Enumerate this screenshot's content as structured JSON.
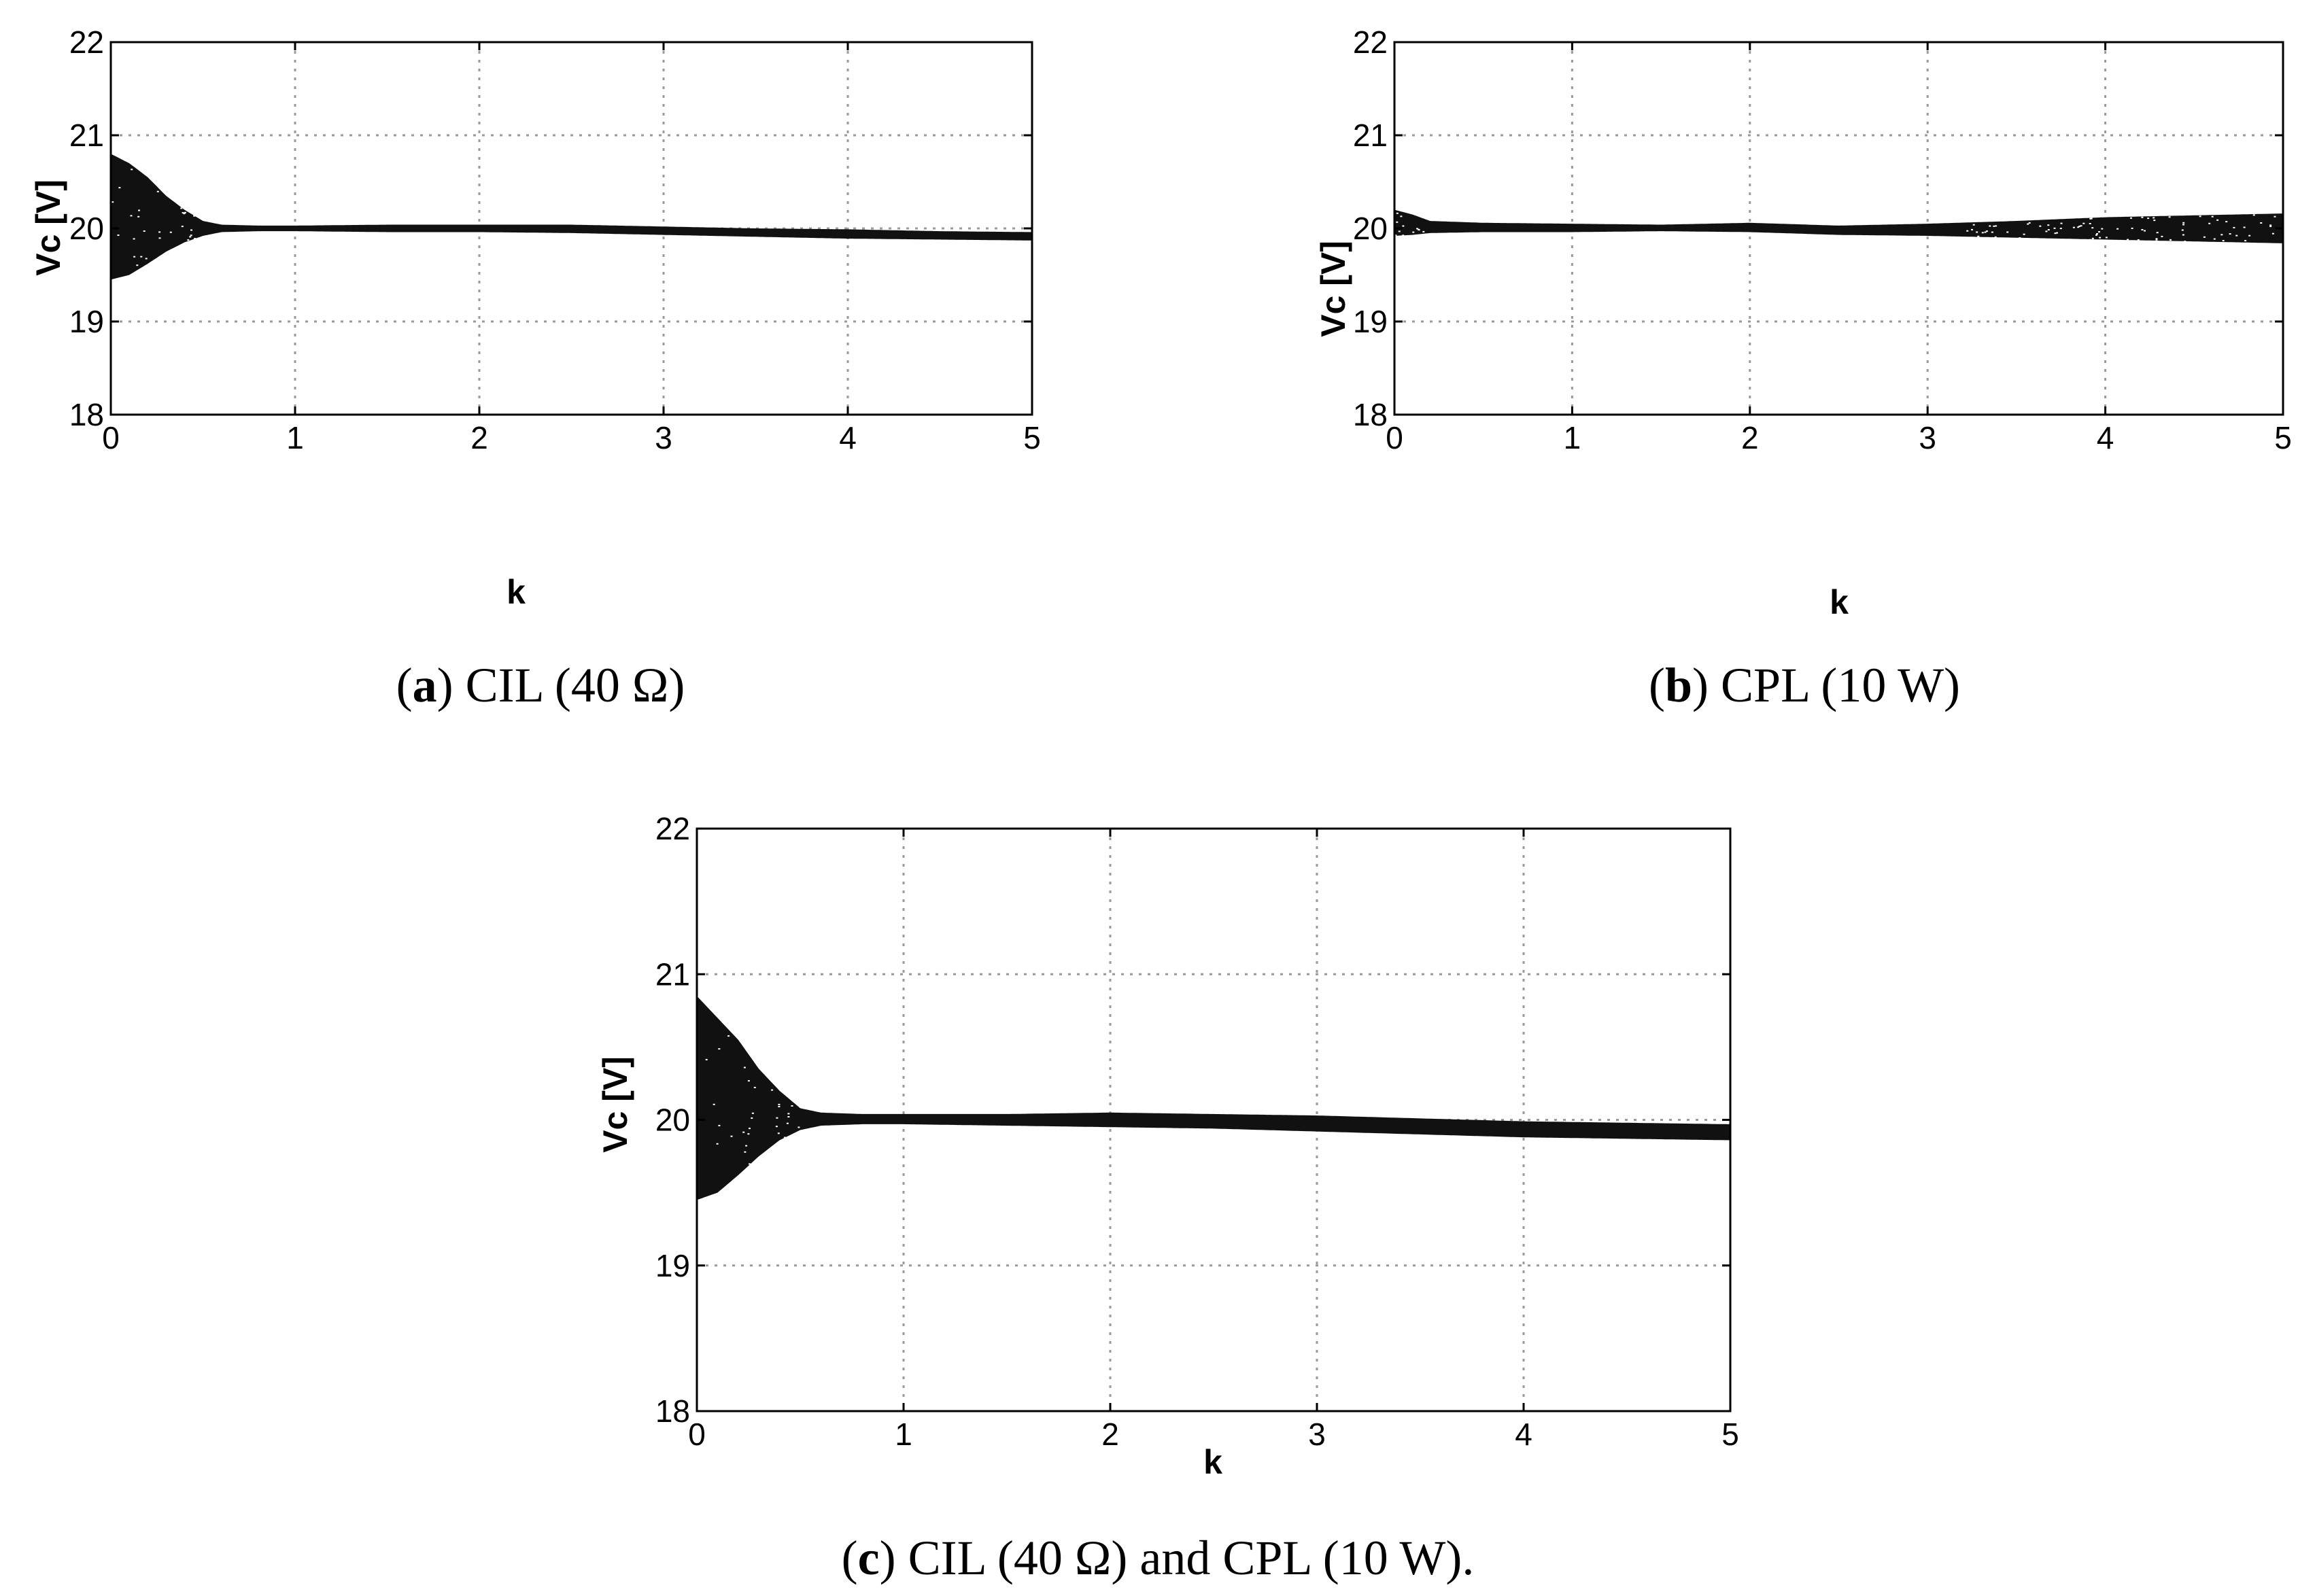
{
  "chart_data": [
    {
      "type": "scatter",
      "id": "a",
      "caption_letter": "a",
      "caption_text": " CIL (40 Ω)",
      "xlabel": "k",
      "ylabel": "Vc   [V]",
      "xlim": [
        0,
        5
      ],
      "ylim": [
        18,
        22
      ],
      "xticks": [
        "0",
        "1",
        "2",
        "3",
        "4",
        "5"
      ],
      "yticks": [
        "18",
        "19",
        "20",
        "21",
        "22"
      ],
      "grid": true,
      "series": [
        {
          "name": "Vc",
          "x": [
            0.0,
            0.1,
            0.2,
            0.3,
            0.4,
            0.5,
            0.6,
            0.8,
            1.0,
            1.5,
            2.0,
            2.5,
            3.0,
            3.5,
            4.0,
            4.5,
            5.0
          ],
          "y_min": [
            19.45,
            19.5,
            19.62,
            19.75,
            19.85,
            19.92,
            19.96,
            19.97,
            19.97,
            19.96,
            19.96,
            19.95,
            19.93,
            19.91,
            19.89,
            19.88,
            19.87
          ],
          "y_max": [
            20.8,
            20.7,
            20.55,
            20.35,
            20.2,
            20.08,
            20.04,
            20.03,
            20.03,
            20.04,
            20.04,
            20.04,
            20.02,
            20.0,
            19.99,
            19.97,
            19.96
          ]
        }
      ]
    },
    {
      "type": "scatter",
      "id": "b",
      "caption_letter": "b",
      "caption_text": " CPL (10 W)",
      "xlabel": "k",
      "ylabel": "Vc   [V]",
      "xlim": [
        0,
        5
      ],
      "ylim": [
        18,
        22
      ],
      "xticks": [
        "0",
        "1",
        "2",
        "3",
        "4",
        "5"
      ],
      "yticks": [
        "18",
        "19",
        "20",
        "21",
        "22"
      ],
      "grid": true,
      "series": [
        {
          "name": "Vc",
          "x": [
            0.0,
            0.1,
            0.2,
            0.5,
            1.0,
            1.5,
            2.0,
            2.5,
            3.0,
            3.5,
            4.0,
            4.5,
            5.0
          ],
          "y_min": [
            19.92,
            19.93,
            19.95,
            19.96,
            19.96,
            19.97,
            19.96,
            19.93,
            19.92,
            19.9,
            19.88,
            19.86,
            19.84
          ],
          "y_max": [
            20.2,
            20.15,
            20.08,
            20.06,
            20.05,
            20.04,
            20.06,
            20.03,
            20.05,
            20.08,
            20.12,
            20.14,
            20.16
          ]
        }
      ]
    },
    {
      "type": "scatter",
      "id": "c",
      "caption_letter": "c",
      "caption_text": " CIL (40 Ω) and CPL (10 W).",
      "xlabel": "k",
      "ylabel": "Vc   [V]",
      "xlim": [
        0,
        5
      ],
      "ylim": [
        18,
        22
      ],
      "xticks": [
        "0",
        "1",
        "2",
        "3",
        "4",
        "5"
      ],
      "yticks": [
        "18",
        "19",
        "20",
        "21",
        "22"
      ],
      "grid": true,
      "series": [
        {
          "name": "Vc",
          "x": [
            0.0,
            0.1,
            0.2,
            0.3,
            0.4,
            0.5,
            0.6,
            0.8,
            1.0,
            1.5,
            2.0,
            2.5,
            3.0,
            3.5,
            4.0,
            4.5,
            5.0
          ],
          "y_min": [
            19.45,
            19.5,
            19.62,
            19.75,
            19.86,
            19.93,
            19.96,
            19.97,
            19.97,
            19.96,
            19.95,
            19.94,
            19.92,
            19.9,
            19.88,
            19.87,
            19.86
          ],
          "y_max": [
            20.85,
            20.7,
            20.55,
            20.35,
            20.2,
            20.08,
            20.05,
            20.04,
            20.04,
            20.04,
            20.05,
            20.04,
            20.03,
            20.01,
            19.99,
            19.98,
            19.97
          ]
        }
      ]
    }
  ]
}
